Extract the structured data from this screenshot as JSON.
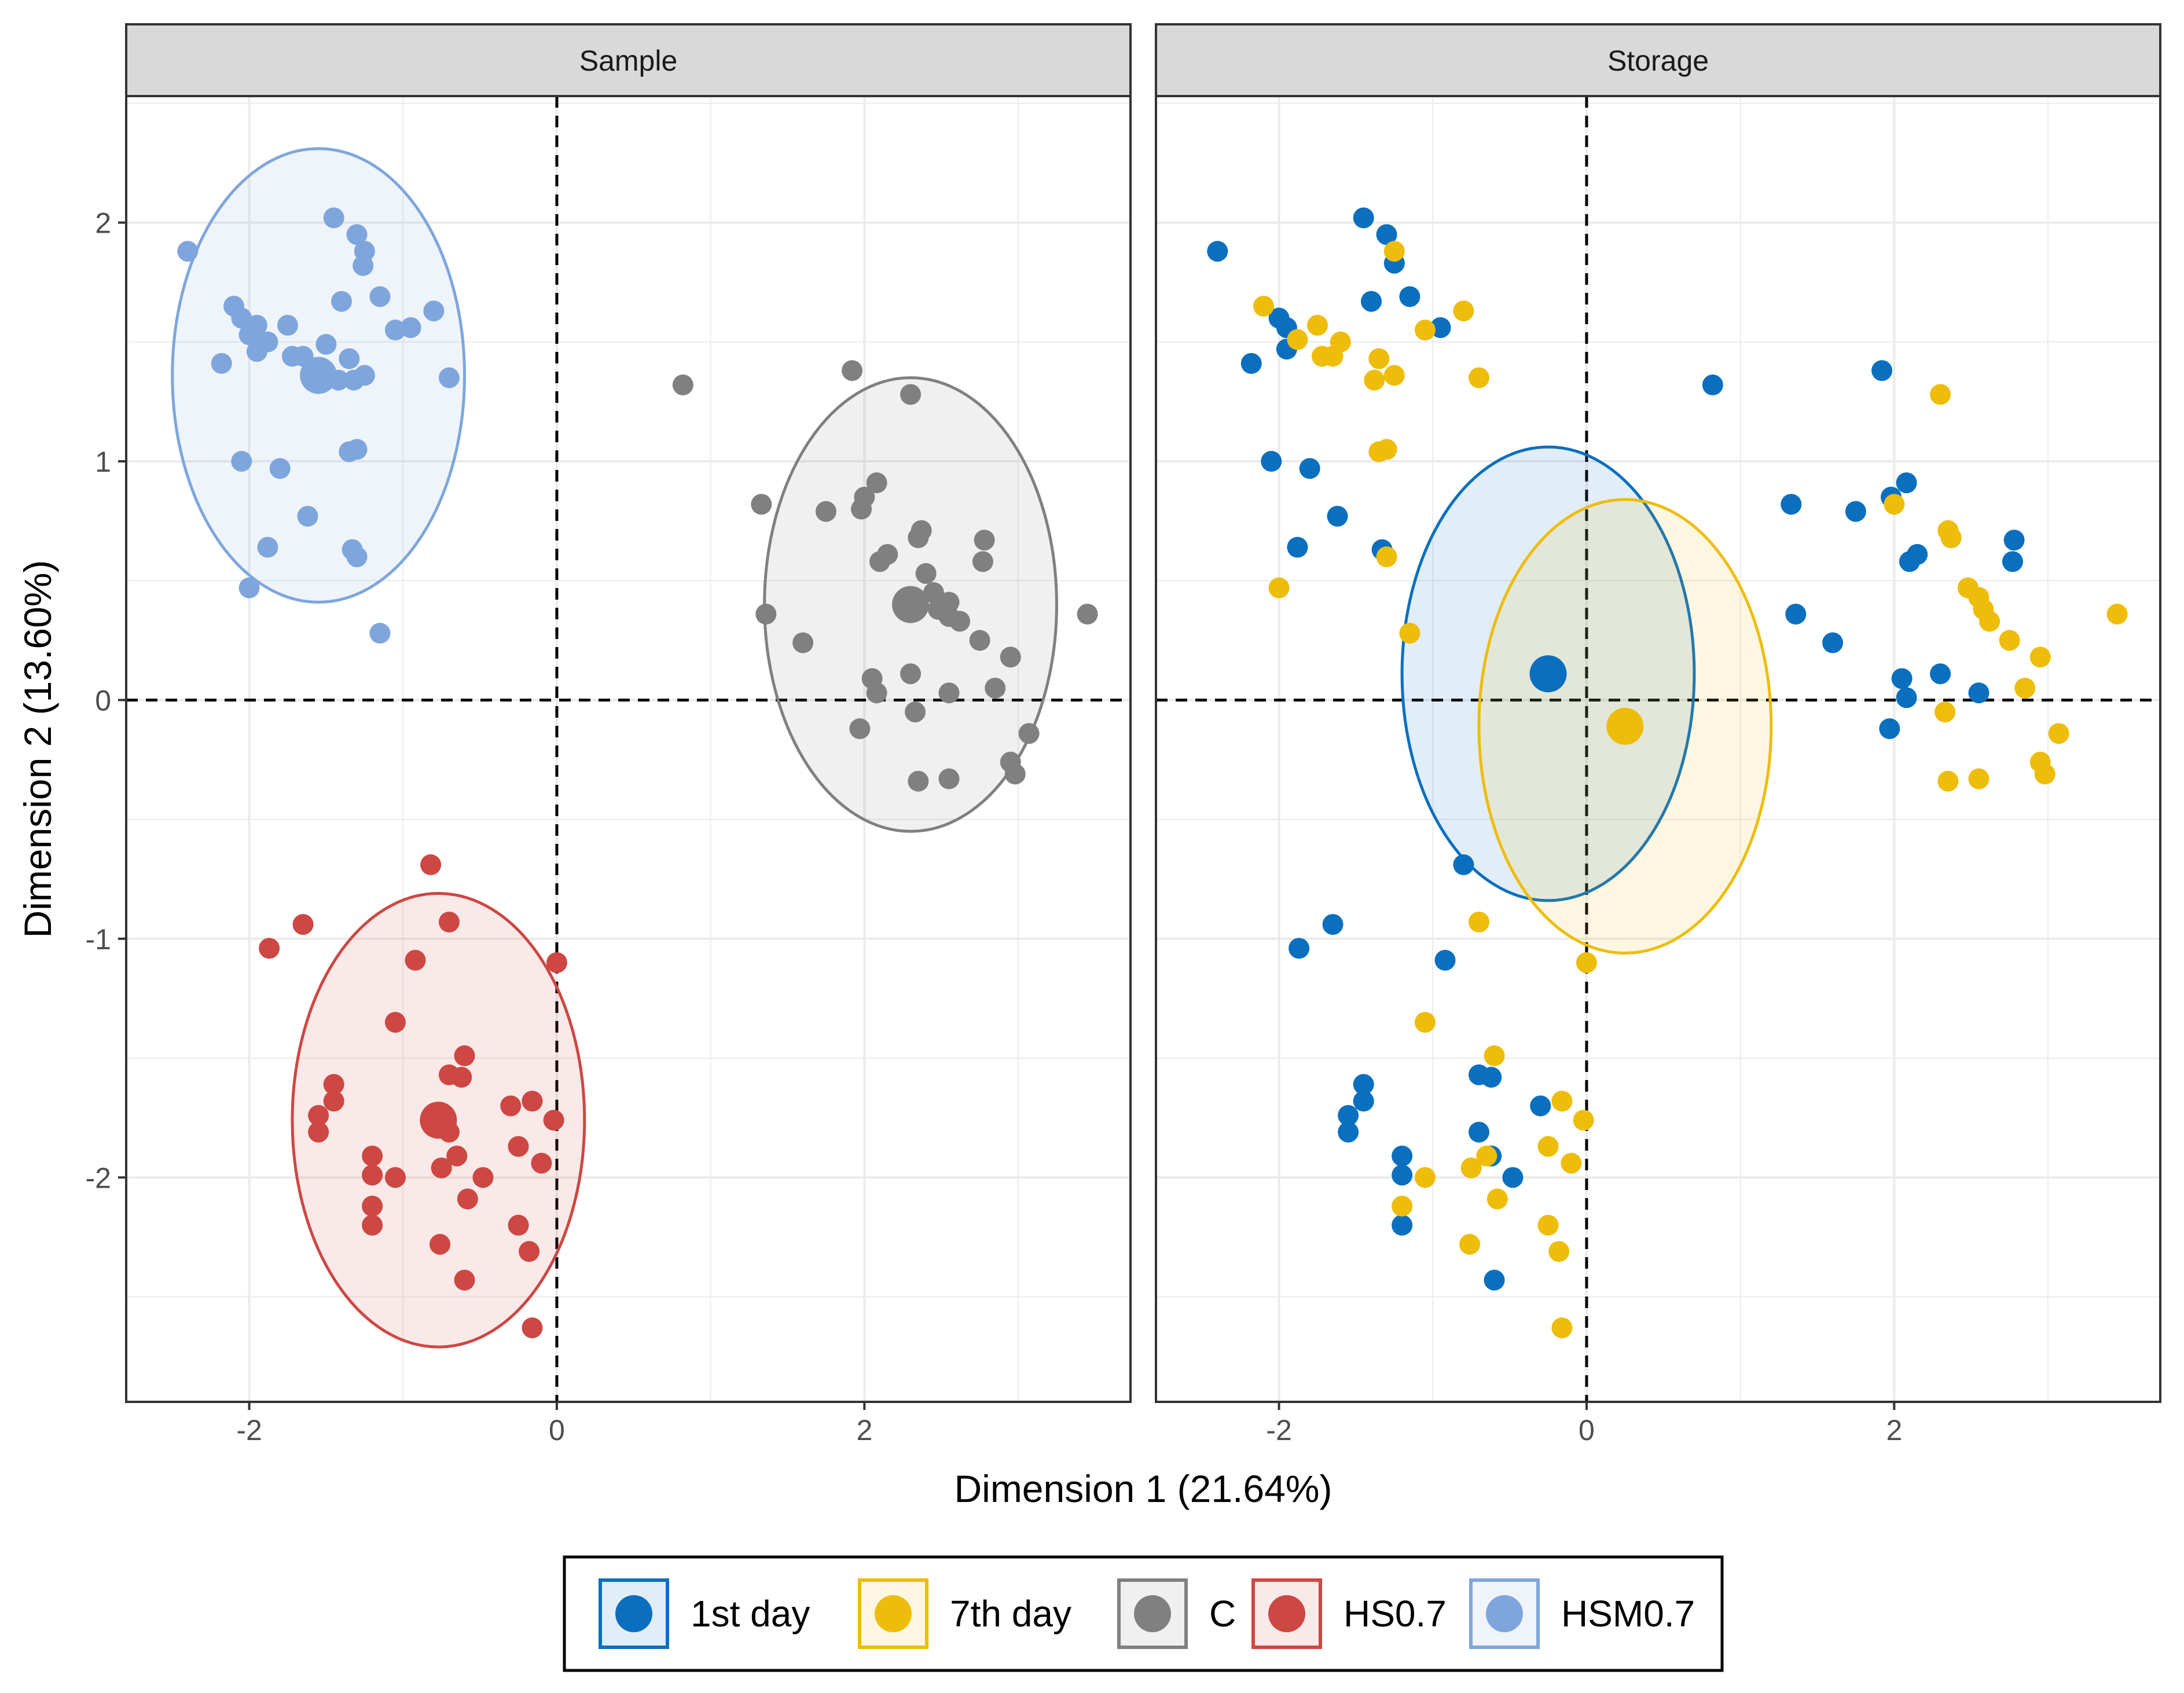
{
  "chart_data": {
    "type": "scatter",
    "xlabel": "Dimension 1 (21.64%)",
    "ylabel": "Dimension 2 (13.60%)",
    "xlim": [
      -2.8,
      3.73
    ],
    "ylim": [
      -2.94,
      2.53
    ],
    "x_ticks": [
      -2,
      0,
      2
    ],
    "y_ticks": [
      -2,
      -1,
      0,
      1,
      2
    ],
    "grid": true,
    "reference_lines": {
      "x": 0,
      "y": 0
    },
    "legend_position": "bottom",
    "legend": [
      {
        "label": "1st day",
        "color": "#0a6fbf"
      },
      {
        "label": "7th day",
        "color": "#eebd0a"
      },
      {
        "label": "C",
        "color": "#808080"
      },
      {
        "label": "HS0.7",
        "color": "#cd4743"
      },
      {
        "label": "HSM0.7",
        "color": "#7ea6dc"
      }
    ],
    "panels": [
      {
        "title": "Sample",
        "groups": [
          {
            "name": "HSM0.7",
            "color": "#7ea6dc",
            "centroid": [
              -1.55,
              1.36
            ],
            "ellipse": {
              "center": [
                -1.55,
                1.36
              ],
              "rx": 0.95,
              "ry": 0.95
            },
            "points": [
              [
                -2.4,
                1.88
              ],
              [
                -1.45,
                2.02
              ],
              [
                -1.3,
                1.95
              ],
              [
                -1.25,
                1.88
              ],
              [
                -1.26,
                1.82
              ],
              [
                -2.1,
                1.65
              ],
              [
                -2.05,
                1.6
              ],
              [
                -1.95,
                1.57
              ],
              [
                -2.0,
                1.53
              ],
              [
                -1.75,
                1.57
              ],
              [
                -1.4,
                1.67
              ],
              [
                -1.15,
                1.69
              ],
              [
                -0.8,
                1.63
              ],
              [
                -0.95,
                1.56
              ],
              [
                -1.05,
                1.55
              ],
              [
                -2.18,
                1.41
              ],
              [
                -1.95,
                1.46
              ],
              [
                -1.88,
                1.5
              ],
              [
                -1.72,
                1.44
              ],
              [
                -1.65,
                1.44
              ],
              [
                -1.5,
                1.49
              ],
              [
                -1.35,
                1.43
              ],
              [
                -1.32,
                1.34
              ],
              [
                -1.25,
                1.36
              ],
              [
                -0.7,
                1.35
              ],
              [
                -1.42,
                1.34
              ],
              [
                -2.05,
                1.0
              ],
              [
                -1.8,
                0.97
              ],
              [
                -1.35,
                1.04
              ],
              [
                -1.3,
                1.05
              ],
              [
                -1.62,
                0.77
              ],
              [
                -1.88,
                0.64
              ],
              [
                -1.33,
                0.63
              ],
              [
                -1.3,
                0.6
              ],
              [
                -2.0,
                0.47
              ],
              [
                -1.15,
                0.28
              ]
            ]
          },
          {
            "name": "C",
            "color": "#808080",
            "centroid": [
              2.3,
              0.4
            ],
            "ellipse": {
              "center": [
                2.3,
                0.4
              ],
              "rx": 0.95,
              "ry": 0.95
            },
            "points": [
              [
                0.82,
                1.32
              ],
              [
                1.92,
                1.38
              ],
              [
                2.3,
                1.28
              ],
              [
                1.33,
                0.82
              ],
              [
                1.75,
                0.79
              ],
              [
                1.98,
                0.8
              ],
              [
                2.0,
                0.85
              ],
              [
                2.08,
                0.91
              ],
              [
                2.37,
                0.71
              ],
              [
                2.35,
                0.68
              ],
              [
                2.78,
                0.67
              ],
              [
                2.77,
                0.58
              ],
              [
                2.1,
                0.58
              ],
              [
                2.15,
                0.61
              ],
              [
                2.4,
                0.53
              ],
              [
                2.45,
                0.45
              ],
              [
                2.55,
                0.41
              ],
              [
                2.48,
                0.38
              ],
              [
                2.55,
                0.35
              ],
              [
                2.62,
                0.33
              ],
              [
                1.36,
                0.36
              ],
              [
                3.45,
                0.36
              ],
              [
                1.6,
                0.24
              ],
              [
                2.75,
                0.25
              ],
              [
                2.95,
                0.18
              ],
              [
                2.3,
                0.11
              ],
              [
                2.05,
                0.09
              ],
              [
                2.08,
                0.03
              ],
              [
                2.55,
                0.03
              ],
              [
                2.85,
                0.05
              ],
              [
                1.97,
                -0.12
              ],
              [
                2.33,
                -0.05
              ],
              [
                3.07,
                -0.14
              ],
              [
                2.35,
                -0.34
              ],
              [
                2.55,
                -0.33
              ],
              [
                2.95,
                -0.26
              ],
              [
                2.98,
                -0.31
              ]
            ]
          },
          {
            "name": "HS0.7",
            "color": "#cd4743",
            "centroid": [
              -0.77,
              -1.76
            ],
            "ellipse": {
              "center": [
                -0.77,
                -1.76
              ],
              "rx": 0.95,
              "ry": 0.95
            },
            "points": [
              [
                -0.82,
                -0.69
              ],
              [
                -1.65,
                -0.94
              ],
              [
                -0.7,
                -0.93
              ],
              [
                -1.87,
                -1.04
              ],
              [
                -0.92,
                -1.09
              ],
              [
                0.0,
                -1.1
              ],
              [
                -1.05,
                -1.35
              ],
              [
                -0.6,
                -1.49
              ],
              [
                -0.7,
                -1.57
              ],
              [
                -0.62,
                -1.58
              ],
              [
                -1.45,
                -1.61
              ],
              [
                -1.45,
                -1.68
              ],
              [
                -1.55,
                -1.74
              ],
              [
                -1.55,
                -1.81
              ],
              [
                -0.7,
                -1.81
              ],
              [
                -0.3,
                -1.7
              ],
              [
                -0.16,
                -1.68
              ],
              [
                -0.02,
                -1.76
              ],
              [
                -0.25,
                -1.87
              ],
              [
                -0.1,
                -1.94
              ],
              [
                -0.75,
                -1.96
              ],
              [
                -0.65,
                -1.91
              ],
              [
                -1.2,
                -1.91
              ],
              [
                -1.2,
                -1.99
              ],
              [
                -1.05,
                -2.0
              ],
              [
                -0.48,
                -2.0
              ],
              [
                -0.58,
                -2.09
              ],
              [
                -1.2,
                -2.12
              ],
              [
                -1.2,
                -2.2
              ],
              [
                -0.25,
                -2.2
              ],
              [
                -0.18,
                -2.31
              ],
              [
                -0.76,
                -2.28
              ],
              [
                -0.6,
                -2.43
              ],
              [
                -0.16,
                -2.63
              ]
            ]
          }
        ]
      },
      {
        "title": "Storage",
        "groups": [
          {
            "name": "1st day",
            "color": "#0a6fbf",
            "centroid": [
              -0.25,
              0.11
            ],
            "ellipse": {
              "center": [
                -0.25,
                0.11
              ],
              "rx": 0.95,
              "ry": 0.95
            },
            "points": [
              [
                -2.4,
                1.88
              ],
              [
                -1.45,
                2.02
              ],
              [
                -1.3,
                1.95
              ],
              [
                -1.25,
                1.83
              ],
              [
                -2.0,
                1.6
              ],
              [
                -1.95,
                1.56
              ],
              [
                -1.95,
                1.47
              ],
              [
                -2.18,
                1.41
              ],
              [
                -1.4,
                1.67
              ],
              [
                -1.15,
                1.69
              ],
              [
                -0.95,
                1.56
              ],
              [
                0.82,
                1.32
              ],
              [
                1.92,
                1.38
              ],
              [
                -2.05,
                1.0
              ],
              [
                -1.8,
                0.97
              ],
              [
                -1.62,
                0.77
              ],
              [
                -1.88,
                0.64
              ],
              [
                -1.33,
                0.63
              ],
              [
                1.33,
                0.82
              ],
              [
                1.75,
                0.79
              ],
              [
                1.98,
                0.85
              ],
              [
                2.08,
                0.91
              ],
              [
                2.37,
                0.68
              ],
              [
                2.78,
                0.67
              ],
              [
                2.77,
                0.58
              ],
              [
                2.1,
                0.58
              ],
              [
                2.15,
                0.61
              ],
              [
                1.36,
                0.36
              ],
              [
                1.6,
                0.24
              ],
              [
                2.05,
                0.09
              ],
              [
                2.08,
                0.01
              ],
              [
                2.3,
                0.11
              ],
              [
                2.55,
                0.03
              ],
              [
                1.97,
                -0.12
              ],
              [
                -0.8,
                -0.69
              ],
              [
                -1.65,
                -0.94
              ],
              [
                -1.87,
                -1.04
              ],
              [
                -0.92,
                -1.09
              ],
              [
                -0.7,
                -1.57
              ],
              [
                -0.62,
                -1.58
              ],
              [
                -1.45,
                -1.61
              ],
              [
                -1.45,
                -1.68
              ],
              [
                -1.55,
                -1.74
              ],
              [
                -1.55,
                -1.81
              ],
              [
                -0.7,
                -1.81
              ],
              [
                -0.3,
                -1.7
              ],
              [
                -1.2,
                -1.91
              ],
              [
                -1.2,
                -1.99
              ],
              [
                -0.48,
                -2.0
              ],
              [
                -0.62,
                -1.91
              ],
              [
                -1.2,
                -2.2
              ],
              [
                -0.6,
                -2.43
              ]
            ]
          },
          {
            "name": "7th day",
            "color": "#eebd0a",
            "centroid": [
              0.25,
              -0.11
            ],
            "ellipse": {
              "center": [
                0.25,
                -0.11
              ],
              "rx": 0.95,
              "ry": 0.95
            },
            "points": [
              [
                -1.25,
                1.88
              ],
              [
                -2.1,
                1.65
              ],
              [
                -1.75,
                1.57
              ],
              [
                -1.88,
                1.51
              ],
              [
                -1.6,
                1.5
              ],
              [
                -1.72,
                1.44
              ],
              [
                -1.65,
                1.44
              ],
              [
                -1.35,
                1.43
              ],
              [
                -1.38,
                1.34
              ],
              [
                -1.25,
                1.36
              ],
              [
                -0.8,
                1.63
              ],
              [
                -1.05,
                1.55
              ],
              [
                -0.7,
                1.35
              ],
              [
                -1.35,
                1.04
              ],
              [
                -1.3,
                1.05
              ],
              [
                -2.0,
                0.47
              ],
              [
                -1.3,
                0.6
              ],
              [
                -1.15,
                0.28
              ],
              [
                2.3,
                1.28
              ],
              [
                2.0,
                0.82
              ],
              [
                2.35,
                0.71
              ],
              [
                2.37,
                0.68
              ],
              [
                2.48,
                0.47
              ],
              [
                2.55,
                0.43
              ],
              [
                2.58,
                0.38
              ],
              [
                2.62,
                0.33
              ],
              [
                2.75,
                0.25
              ],
              [
                2.95,
                0.18
              ],
              [
                3.45,
                0.36
              ],
              [
                2.85,
                0.05
              ],
              [
                2.33,
                -0.05
              ],
              [
                3.07,
                -0.14
              ],
              [
                2.35,
                -0.34
              ],
              [
                2.55,
                -0.33
              ],
              [
                2.95,
                -0.26
              ],
              [
                2.98,
                -0.31
              ],
              [
                -0.7,
                -0.93
              ],
              [
                0.0,
                -1.1
              ],
              [
                -1.05,
                -1.35
              ],
              [
                -0.6,
                -1.49
              ],
              [
                -0.16,
                -1.68
              ],
              [
                -0.02,
                -1.76
              ],
              [
                -0.25,
                -1.87
              ],
              [
                -0.1,
                -1.94
              ],
              [
                -0.75,
                -1.96
              ],
              [
                -0.65,
                -1.91
              ],
              [
                -1.05,
                -2.0
              ],
              [
                -0.58,
                -2.09
              ],
              [
                -1.2,
                -2.12
              ],
              [
                -0.25,
                -2.2
              ],
              [
                -0.18,
                -2.31
              ],
              [
                -0.76,
                -2.28
              ],
              [
                -0.16,
                -2.63
              ]
            ]
          }
        ]
      }
    ]
  }
}
